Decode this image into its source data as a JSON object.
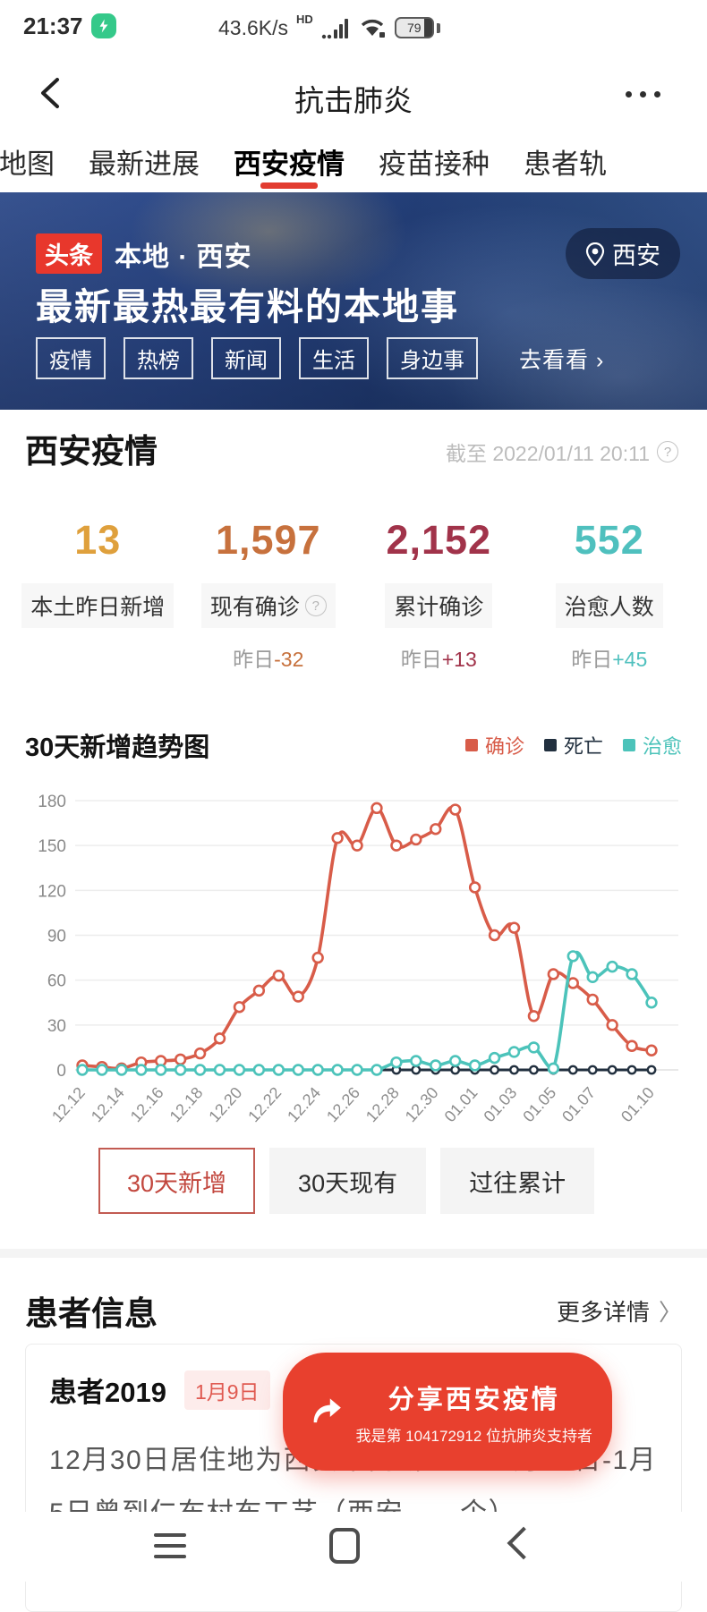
{
  "status_bar": {
    "time": "21:37",
    "speed": "43.6K/s",
    "hd": "HD",
    "battery": "79"
  },
  "nav": {
    "title": "抗击肺炎"
  },
  "tabs": {
    "selected_index": 2,
    "items": [
      "情地图",
      "最新进展",
      "西安疫情",
      "疫苗接种",
      "患者轨"
    ]
  },
  "banner": {
    "badge": "头条",
    "local": "本地 · 西安",
    "location": "西安",
    "headline": "最新最热最有料的本地事",
    "tags": [
      "疫情",
      "热榜",
      "新闻",
      "生活",
      "身边事"
    ],
    "cta": "去看看 ›"
  },
  "overview": {
    "title": "西安疫情",
    "as_of": "截至 2022/01/11 20:11",
    "delta_prefix": "昨日",
    "stats": [
      {
        "value": "13",
        "label": "本土昨日新增",
        "color": "#dfa03c",
        "has_help": false,
        "delta": ""
      },
      {
        "value": "1,597",
        "label": "现有确诊",
        "color": "#c7713d",
        "has_help": true,
        "delta": "-32",
        "delta_color": "#c7713d"
      },
      {
        "value": "2,152",
        "label": "累计确诊",
        "color": "#a1334a",
        "has_help": false,
        "delta": "+13",
        "delta_color": "#a1334a"
      },
      {
        "value": "552",
        "label": "治愈人数",
        "color": "#4fc0be",
        "has_help": false,
        "delta": "+45",
        "delta_color": "#4fc0be"
      }
    ]
  },
  "chart_data": {
    "type": "line",
    "title": "30天新增趋势图",
    "x": [
      "12.12",
      "12.13",
      "12.14",
      "12.15",
      "12.16",
      "12.17",
      "12.18",
      "12.19",
      "12.20",
      "12.21",
      "12.22",
      "12.23",
      "12.24",
      "12.25",
      "12.26",
      "12.27",
      "12.28",
      "12.29",
      "12.30",
      "12.31",
      "01.01",
      "01.02",
      "01.03",
      "01.04",
      "01.05",
      "01.06",
      "01.07",
      "01.08",
      "01.09",
      "01.10"
    ],
    "x_tick_indices": [
      0,
      2,
      4,
      6,
      8,
      10,
      12,
      14,
      16,
      18,
      20,
      22,
      24,
      26,
      29
    ],
    "series": [
      {
        "name": "确诊",
        "color": "#d85c49",
        "values": [
          3,
          2,
          1,
          5,
          6,
          7,
          11,
          21,
          42,
          53,
          63,
          49,
          75,
          155,
          150,
          175,
          150,
          154,
          161,
          174,
          122,
          90,
          95,
          36,
          64,
          58,
          47,
          30,
          16,
          13
        ]
      },
      {
        "name": "死亡",
        "color": "#22303f",
        "values": [
          0,
          0,
          0,
          0,
          0,
          0,
          0,
          0,
          0,
          0,
          0,
          0,
          0,
          0,
          0,
          0,
          0,
          0,
          0,
          0,
          0,
          0,
          0,
          0,
          0,
          0,
          0,
          0,
          0,
          0
        ]
      },
      {
        "name": "治愈",
        "color": "#4cc3ba",
        "values": [
          0,
          0,
          0,
          0,
          0,
          0,
          0,
          0,
          0,
          0,
          0,
          0,
          0,
          0,
          0,
          0,
          5,
          6,
          3,
          6,
          3,
          8,
          12,
          15,
          1,
          76,
          62,
          69,
          64,
          45
        ]
      }
    ],
    "ylim": [
      0,
      180
    ],
    "yticks": [
      0,
      30,
      60,
      90,
      120,
      150,
      180
    ],
    "grid": true,
    "legend_position": "top-right"
  },
  "range_buttons": {
    "items": [
      {
        "label": "30天新增",
        "active": true
      },
      {
        "label": "30天现有",
        "active": false
      },
      {
        "label": "过往累计",
        "active": false
      }
    ]
  },
  "patients": {
    "title": "患者信息",
    "more_label": "更多详情",
    "card": {
      "title": "患者2019",
      "date_badge": "1月9日",
      "body": "12月30日居住地为西安市高新区。12月31日-1月5日曾到仁布村布工艺（西安——个）"
    }
  },
  "share": {
    "label": "分享西安疫情",
    "subtext": "我是第 104172912 位抗肺炎支持者"
  },
  "colors": {
    "accent_red": "#e23c30",
    "share_red": "#e8402e",
    "banner_badge_red": "#e8372c"
  }
}
